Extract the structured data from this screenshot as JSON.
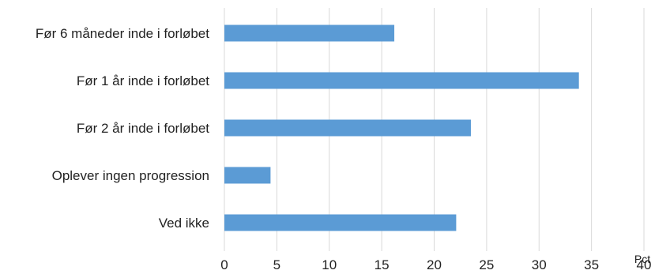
{
  "chart_data": {
    "type": "bar",
    "orientation": "horizontal",
    "categories": [
      "Før 6 måneder inde i forløbet",
      "Før 1 år inde i forløbet",
      "Før 2 år inde i forløbet",
      "Oplever ingen progression",
      "Ved ikke"
    ],
    "values": [
      16.2,
      33.8,
      23.5,
      4.4,
      22.1
    ],
    "xlim": [
      0,
      40
    ],
    "xticks": [
      "0",
      "5",
      "10",
      "15",
      "20",
      "25",
      "30",
      "35",
      "40"
    ],
    "unit_label": "Pct",
    "bar_color": "#5b9bd5",
    "grid": "vertical"
  }
}
